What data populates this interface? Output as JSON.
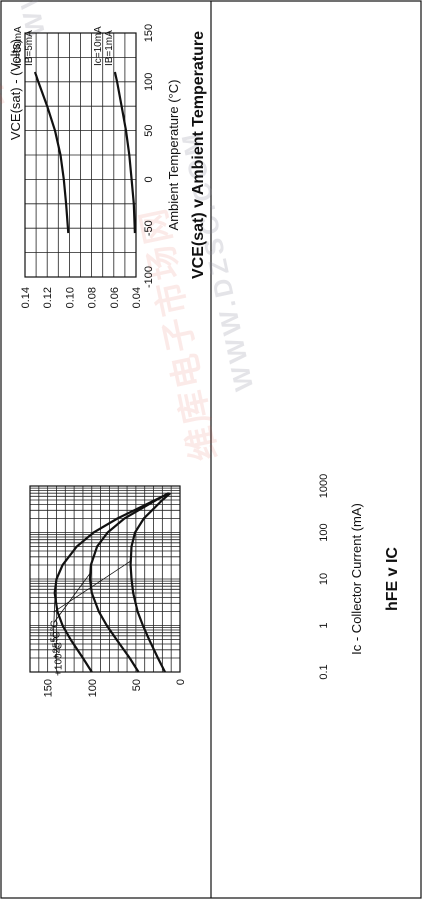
{
  "chart_data": [
    {
      "type": "line",
      "title": "hFE v IC",
      "xlabel": "Ic - Collector Current (mA)",
      "ylabel": "",
      "x_scale": "log",
      "xlim": [
        0.1,
        1000
      ],
      "ylim": [
        0,
        170
      ],
      "x_ticks": [
        "0.1",
        "1",
        "10",
        "100",
        "1000"
      ],
      "y_ticks": [
        "0",
        "50",
        "100",
        "150"
      ],
      "grid": true,
      "series": [
        {
          "name": "+100°C",
          "x": [
            0.1,
            0.2,
            0.5,
            1,
            2,
            5,
            10,
            20,
            50,
            100,
            200,
            500,
            700
          ],
          "y": [
            100,
            110,
            124,
            133,
            139,
            142,
            140,
            133,
            117,
            98,
            71,
            28,
            12
          ]
        },
        {
          "name": "+25°C",
          "x": [
            0.1,
            0.2,
            0.5,
            1,
            2,
            5,
            10,
            20,
            50,
            100,
            200,
            500,
            700
          ],
          "y": [
            47,
            57,
            72,
            83,
            92,
            100,
            102,
            101,
            94,
            82,
            63,
            27,
            13
          ]
        },
        {
          "name": "-55°C",
          "x": [
            0.1,
            0.2,
            0.5,
            1,
            2,
            5,
            10,
            20,
            50,
            100,
            200,
            500,
            700
          ],
          "y": [
            17,
            25,
            35,
            42,
            48,
            53,
            55,
            56,
            55,
            51,
            41,
            20,
            11
          ]
        }
      ],
      "annotation": [
        "-55°C",
        "+25°C",
        "+100°C"
      ]
    },
    {
      "type": "line",
      "title": "VCE(sat) v Ambient Temperature",
      "xlabel": "Ambient Temperature (°C)",
      "ylabel": "VCE(sat) - (Volts)",
      "xlim": [
        -100,
        150
      ],
      "ylim": [
        0.04,
        0.14
      ],
      "x_ticks": [
        "-100",
        "-50",
        "0",
        "50",
        "100",
        "150"
      ],
      "y_ticks": [
        "0.04",
        "0.06",
        "0.08",
        "0.10",
        "0.12",
        "0.14"
      ],
      "grid": true,
      "series": [
        {
          "name": "Ic=50mA IB=5mA",
          "x": [
            -55,
            -25,
            0,
            25,
            50,
            75,
            100,
            110
          ],
          "y": [
            0.101,
            0.103,
            0.105,
            0.108,
            0.113,
            0.12,
            0.128,
            0.131
          ]
        },
        {
          "name": "Ic=10mA IB=1mA",
          "x": [
            -55,
            -25,
            0,
            25,
            50,
            75,
            100,
            110
          ],
          "y": [
            0.041,
            0.042,
            0.044,
            0.046,
            0.049,
            0.053,
            0.057,
            0.059
          ]
        }
      ],
      "labels": [
        {
          "line1": "Ic=50mA",
          "line2": "IB=5mA"
        },
        {
          "line1": "Ic=10mA",
          "line2": "IB=1mA"
        }
      ]
    }
  ],
  "watermark": {
    "cjk": "维库电子市场网",
    "latin": "WWW.DZSC.COM"
  }
}
